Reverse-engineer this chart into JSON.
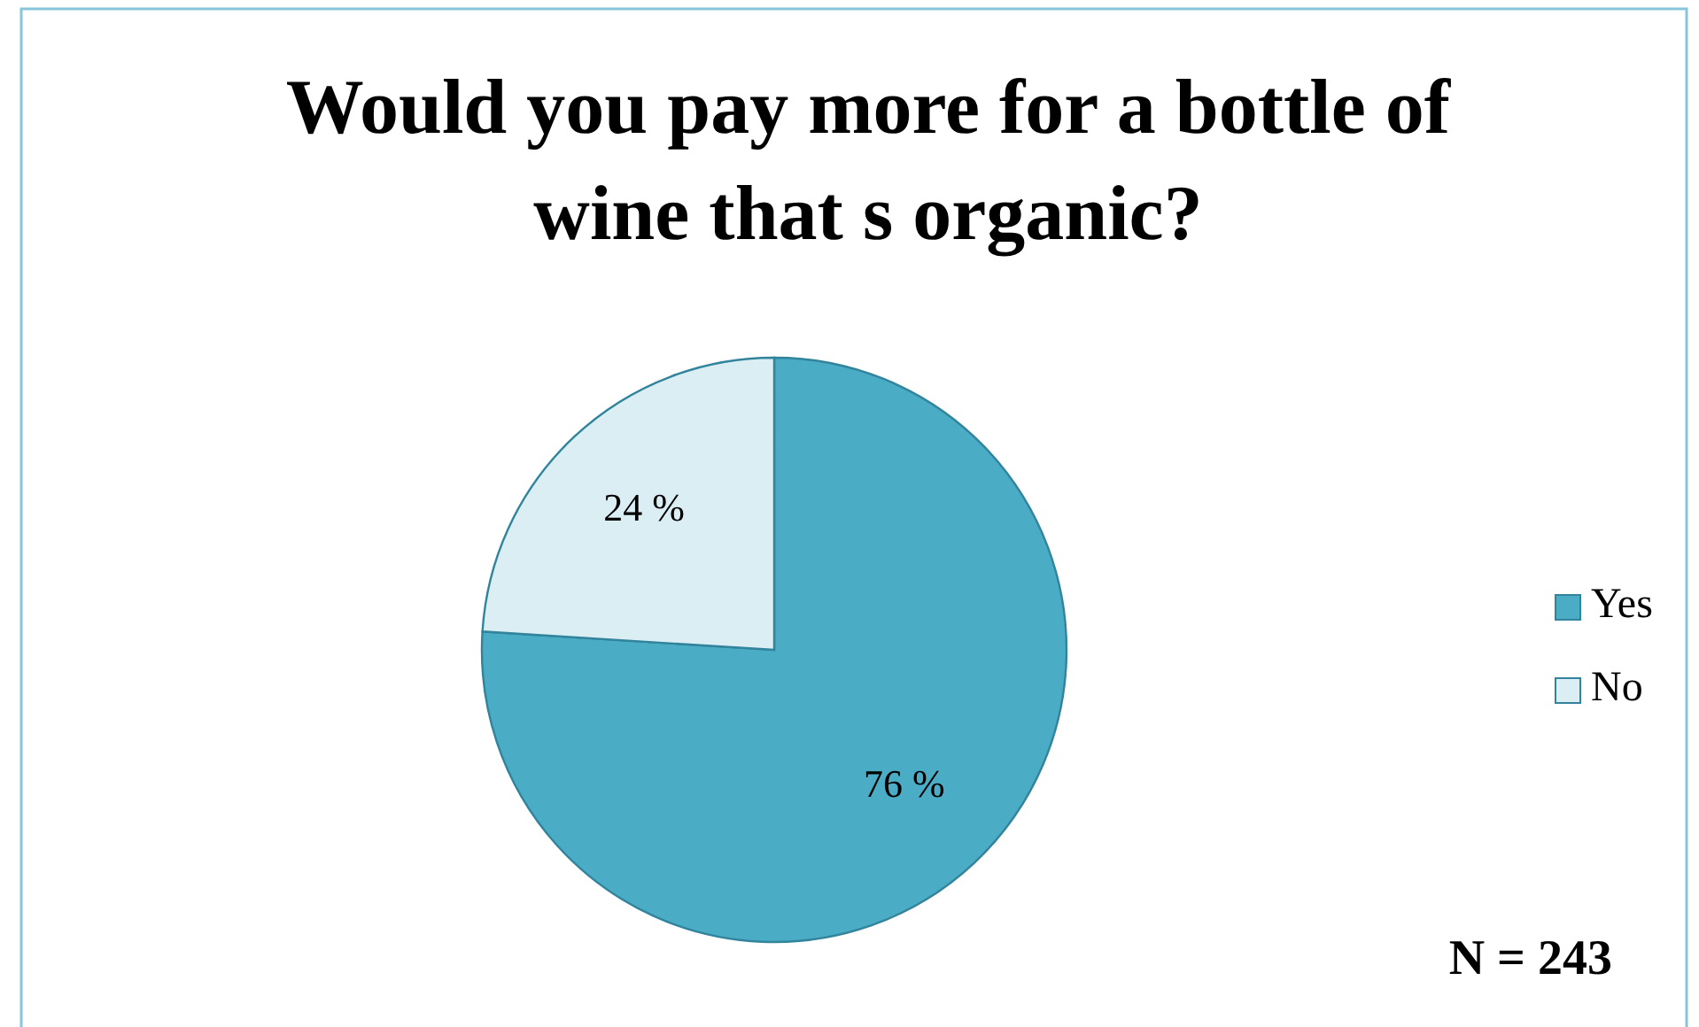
{
  "chart_data": {
    "type": "pie",
    "title": "Would you pay more for a bottle of wine that s organic?",
    "categories": [
      "Yes",
      "No"
    ],
    "values": [
      76,
      24
    ],
    "colors": [
      "#4bacc6",
      "#dbeef4"
    ],
    "value_labels": [
      "76 %",
      "24 %"
    ],
    "legend": "right",
    "annotations": [
      "N = 243"
    ]
  }
}
